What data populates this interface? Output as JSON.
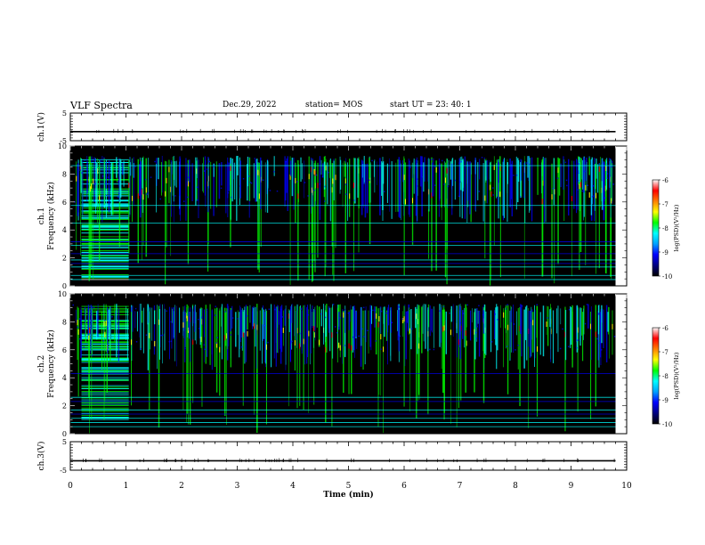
{
  "header": {
    "title": "VLF Spectra",
    "date": "Dec.29, 2022",
    "station": "station= MOS",
    "start": "start  UT =   23: 40: 1"
  },
  "chart_data": [
    {
      "type": "line",
      "panel": "ch1-waveform",
      "ylabel": "ch.1(V)",
      "xlim": [
        0,
        10
      ],
      "ylim": [
        -5,
        5
      ],
      "yticks": [
        "5",
        "-5"
      ],
      "series": [
        {
          "x": [
            0,
            9.8
          ],
          "y": [
            -1.7,
            -1.7
          ]
        }
      ]
    },
    {
      "type": "heatmap",
      "panel": "ch1-spectrogram",
      "ylabel": "ch.1\nFrequency (kHz)",
      "xlim": [
        0,
        10
      ],
      "ylim": [
        0,
        10
      ],
      "yticks": [
        "0",
        "2",
        "4",
        "6",
        "8",
        "10"
      ],
      "colorbar": {
        "label": "log(PSD)(V²/Hz)",
        "range": [
          -10,
          -6
        ],
        "ticks": [
          "-6",
          "-7",
          "-8",
          "-9",
          "-10"
        ]
      },
      "lines_khz": [
        0.45,
        0.75,
        1.35,
        1.6,
        1.85,
        2.3,
        2.9,
        3.15,
        4.5,
        5.75,
        8.6
      ],
      "dense_interval_min": [
        0.2,
        1.05
      ]
    },
    {
      "type": "heatmap",
      "panel": "ch2-spectrogram",
      "ylabel": "ch.2\nFrequency (kHz)",
      "xlim": [
        0,
        10
      ],
      "ylim": [
        0,
        10
      ],
      "yticks": [
        "0",
        "2",
        "4",
        "6",
        "8",
        "10"
      ],
      "colorbar": {
        "label": "log(PSD)(V²/Hz)",
        "range": [
          -10,
          -6
        ],
        "ticks": [
          "-6",
          "-7",
          "-8",
          "-9",
          "-10"
        ]
      },
      "lines_khz": [
        0.5,
        0.8,
        1.1,
        1.4,
        1.7,
        2.3,
        2.6,
        4.3
      ],
      "dense_interval_min": [
        0.2,
        1.05
      ]
    },
    {
      "type": "line",
      "panel": "ch3-waveform",
      "ylabel": "ch.3(V)",
      "xlabel": "Time (min)",
      "xlim": [
        0,
        10
      ],
      "ylim": [
        -5,
        5
      ],
      "yticks": [
        "5",
        "-5"
      ],
      "xticks": [
        "0",
        "1",
        "2",
        "3",
        "4",
        "5",
        "6",
        "7",
        "8",
        "9",
        "10"
      ],
      "series": [
        {
          "x": [
            0,
            9.8
          ],
          "y": [
            -1.7,
            -1.7
          ]
        }
      ]
    }
  ],
  "colors": {
    "background": "#000000",
    "trace": "#000000",
    "colormap": [
      "#000080",
      "#0000ff",
      "#00ffff",
      "#00ff00",
      "#ffff00",
      "#ff0000",
      "#ffffff"
    ]
  }
}
